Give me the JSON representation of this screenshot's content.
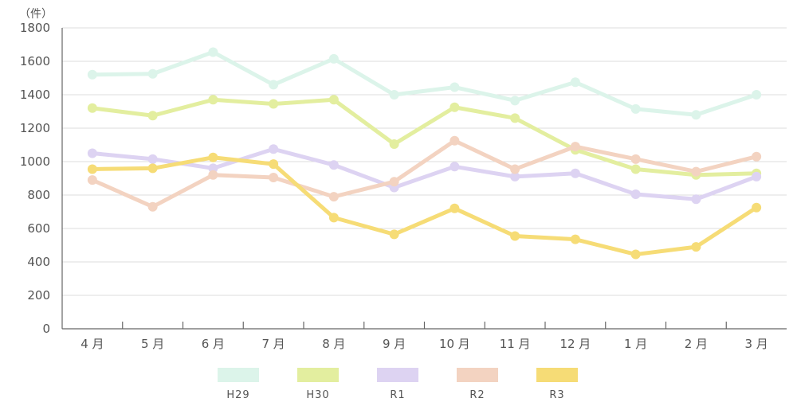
{
  "chart_data": {
    "type": "line",
    "unit_label": "（件）",
    "categories": [
      "4 月",
      "5 月",
      "6 月",
      "7 月",
      "8 月",
      "9 月",
      "10 月",
      "11 月",
      "12 月",
      "1 月",
      "2 月",
      "3 月"
    ],
    "y_ticks": [
      "0",
      "200",
      "400",
      "600",
      "800",
      "1000",
      "1200",
      "1400",
      "1600",
      "1800"
    ],
    "ylim": [
      0,
      1800
    ],
    "grid": true,
    "legend_position": "bottom",
    "series": [
      {
        "name": "H29",
        "color": "#dcf4ea",
        "values": [
          1520,
          1525,
          1655,
          1460,
          1615,
          1400,
          1445,
          1365,
          1475,
          1315,
          1280,
          1400
        ]
      },
      {
        "name": "H30",
        "color": "#e3ee9f",
        "values": [
          1320,
          1275,
          1370,
          1345,
          1370,
          1105,
          1325,
          1260,
          1070,
          955,
          920,
          930
        ]
      },
      {
        "name": "R1",
        "color": "#ddd3f2",
        "values": [
          1050,
          1015,
          960,
          1075,
          980,
          845,
          970,
          910,
          930,
          805,
          775,
          910
        ]
      },
      {
        "name": "R2",
        "color": "#f3d3c1",
        "values": [
          890,
          730,
          920,
          905,
          790,
          880,
          1125,
          955,
          1090,
          1015,
          940,
          1030
        ]
      },
      {
        "name": "R3",
        "color": "#f6dc76",
        "values": [
          955,
          960,
          1025,
          985,
          665,
          565,
          720,
          555,
          535,
          445,
          490,
          725
        ]
      }
    ]
  }
}
